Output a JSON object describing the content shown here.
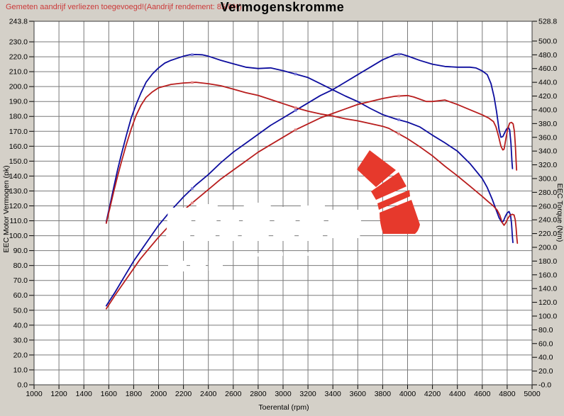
{
  "header": {
    "warning": "Gemeten aandrijf verliezen toegevoegd!(Aandrijf rendement: 85.0%)",
    "title": "Vermogenskromme"
  },
  "colors": {
    "background": "#d4d0c8",
    "plot_bg": "#ffffff",
    "grid": "#7a7a7a",
    "border": "#3a3a3a",
    "blue_curve": "#0d0d9e",
    "red_curve": "#b81d1d",
    "blue_marker": "#7878d8",
    "red_marker": "#e28585",
    "warning_text": "#cc3a3a",
    "logo_red": "#e6392c",
    "watermark_white": "#ffffff"
  },
  "chart_data": {
    "type": "line",
    "title": "Vermogenskromme",
    "xlabel": "Toerental (rpm)",
    "ylabel_left": "EEC Motor Vermogen (pk)",
    "ylabel_right": "EEC Torque (Nm)",
    "x_range": [
      1000,
      5000
    ],
    "y_left_range": [
      0,
      243.8
    ],
    "y_right_range": [
      0,
      528.8
    ],
    "grid": true,
    "x_ticks": [
      1000,
      1200,
      1400,
      1600,
      1800,
      2000,
      2200,
      2400,
      2600,
      2800,
      3000,
      3200,
      3400,
      3600,
      3800,
      4000,
      4200,
      4400,
      4600,
      4800,
      5000
    ],
    "y_left_ticks": [
      "243.8",
      "230.0",
      "220.0",
      "210.0",
      "200.0",
      "190.0",
      "180.0",
      "170.0",
      "160.0",
      "150.0",
      "140.0",
      "130.0",
      "120.0",
      "110.0",
      "100.0",
      "90.0",
      "80.0",
      "70.0",
      "60.0",
      "50.0",
      "40.0",
      "30.0",
      "20.0",
      "10.0",
      "0.0"
    ],
    "y_right_ticks": [
      "528.8",
      "500.0",
      "480.0",
      "460.0",
      "440.0",
      "420.0",
      "400.0",
      "380.0",
      "360.0",
      "340.0",
      "320.0",
      "300.0",
      "280.0",
      "260.0",
      "240.0",
      "220.0",
      "200.0",
      "180.0",
      "160.0",
      "140.0",
      "120.0",
      "100.0",
      "80.0",
      "60.0",
      "40.0",
      "20.0",
      "-0.0"
    ],
    "marker_rpms": [
      2270,
      3100,
      3930
    ],
    "series": [
      {
        "name": "power-blue",
        "axis": "left",
        "color": "#0d0d9e",
        "marker_color": "#7878d8",
        "points": [
          [
            1580,
            53
          ],
          [
            1650,
            62
          ],
          [
            1700,
            69
          ],
          [
            1750,
            76
          ],
          [
            1800,
            83
          ],
          [
            1850,
            89
          ],
          [
            1900,
            95
          ],
          [
            1950,
            101
          ],
          [
            2000,
            107
          ],
          [
            2100,
            117
          ],
          [
            2200,
            126
          ],
          [
            2300,
            134
          ],
          [
            2400,
            141
          ],
          [
            2500,
            149
          ],
          [
            2600,
            156
          ],
          [
            2700,
            162
          ],
          [
            2800,
            168
          ],
          [
            2900,
            174
          ],
          [
            3000,
            179
          ],
          [
            3100,
            184
          ],
          [
            3200,
            189
          ],
          [
            3300,
            194
          ],
          [
            3400,
            198
          ],
          [
            3500,
            203
          ],
          [
            3600,
            208
          ],
          [
            3700,
            213
          ],
          [
            3800,
            218
          ],
          [
            3900,
            221.5
          ],
          [
            3950,
            221.8
          ],
          [
            4000,
            220.5
          ],
          [
            4100,
            217.5
          ],
          [
            4200,
            215
          ],
          [
            4300,
            213.5
          ],
          [
            4400,
            213
          ],
          [
            4500,
            213
          ],
          [
            4550,
            212.5
          ],
          [
            4600,
            210.5
          ],
          [
            4640,
            208
          ],
          [
            4670,
            202
          ],
          [
            4695,
            193
          ],
          [
            4715,
            183
          ],
          [
            4735,
            171
          ],
          [
            4750,
            166
          ],
          [
            4765,
            166.5
          ],
          [
            4780,
            169
          ],
          [
            4795,
            171.5
          ],
          [
            4810,
            172.5
          ],
          [
            4820,
            171
          ],
          [
            4830,
            162
          ],
          [
            4838,
            150
          ],
          [
            4843,
            145
          ]
        ]
      },
      {
        "name": "torque-blue",
        "axis": "right",
        "color": "#0d0d9e",
        "marker_color": "#7878d8",
        "points": [
          [
            1580,
            237
          ],
          [
            1610,
            262
          ],
          [
            1640,
            287
          ],
          [
            1670,
            312
          ],
          [
            1700,
            334
          ],
          [
            1740,
            362
          ],
          [
            1780,
            388
          ],
          [
            1820,
            408
          ],
          [
            1860,
            425
          ],
          [
            1900,
            440
          ],
          [
            1950,
            452
          ],
          [
            2000,
            461
          ],
          [
            2050,
            468
          ],
          [
            2100,
            472
          ],
          [
            2150,
            475
          ],
          [
            2200,
            478
          ],
          [
            2250,
            480
          ],
          [
            2300,
            480.5
          ],
          [
            2350,
            480
          ],
          [
            2400,
            478
          ],
          [
            2450,
            475
          ],
          [
            2500,
            472
          ],
          [
            2600,
            467
          ],
          [
            2700,
            462
          ],
          [
            2800,
            460
          ],
          [
            2900,
            461
          ],
          [
            3000,
            457
          ],
          [
            3100,
            452
          ],
          [
            3200,
            447
          ],
          [
            3300,
            438
          ],
          [
            3400,
            429
          ],
          [
            3500,
            420
          ],
          [
            3600,
            412
          ],
          [
            3700,
            402
          ],
          [
            3800,
            393
          ],
          [
            3900,
            387
          ],
          [
            4000,
            382
          ],
          [
            4100,
            375
          ],
          [
            4200,
            363
          ],
          [
            4300,
            352
          ],
          [
            4400,
            340
          ],
          [
            4500,
            322
          ],
          [
            4600,
            300
          ],
          [
            4640,
            287
          ],
          [
            4680,
            270
          ],
          [
            4710,
            255
          ],
          [
            4735,
            243
          ],
          [
            4755,
            237
          ],
          [
            4770,
            238
          ],
          [
            4785,
            245
          ],
          [
            4800,
            250
          ],
          [
            4815,
            252
          ],
          [
            4827,
            247
          ],
          [
            4835,
            235
          ],
          [
            4842,
            215
          ],
          [
            4846,
            207
          ]
        ]
      },
      {
        "name": "power-red",
        "axis": "left",
        "color": "#b81d1d",
        "marker_color": "#e28585",
        "points": [
          [
            1580,
            51
          ],
          [
            1650,
            60
          ],
          [
            1700,
            66
          ],
          [
            1750,
            72
          ],
          [
            1800,
            78
          ],
          [
            1850,
            84
          ],
          [
            1900,
            89
          ],
          [
            1950,
            94
          ],
          [
            2000,
            99
          ],
          [
            2100,
            108
          ],
          [
            2200,
            117
          ],
          [
            2300,
            124
          ],
          [
            2400,
            131
          ],
          [
            2500,
            138
          ],
          [
            2600,
            144
          ],
          [
            2700,
            150
          ],
          [
            2800,
            156
          ],
          [
            2900,
            161
          ],
          [
            3000,
            166
          ],
          [
            3100,
            171
          ],
          [
            3200,
            175
          ],
          [
            3300,
            179
          ],
          [
            3400,
            182
          ],
          [
            3500,
            185
          ],
          [
            3600,
            188
          ],
          [
            3700,
            190
          ],
          [
            3800,
            192
          ],
          [
            3900,
            193.5
          ],
          [
            4000,
            194
          ],
          [
            4050,
            193
          ],
          [
            4100,
            191.5
          ],
          [
            4150,
            190
          ],
          [
            4200,
            190
          ],
          [
            4250,
            190.5
          ],
          [
            4300,
            191
          ],
          [
            4350,
            189.5
          ],
          [
            4400,
            188
          ],
          [
            4500,
            184.5
          ],
          [
            4600,
            181
          ],
          [
            4650,
            179
          ],
          [
            4690,
            176.5
          ],
          [
            4710,
            173
          ],
          [
            4730,
            167
          ],
          [
            4750,
            160
          ],
          [
            4765,
            157.5
          ],
          [
            4775,
            158
          ],
          [
            4790,
            165
          ],
          [
            4805,
            172
          ],
          [
            4820,
            175.5
          ],
          [
            4835,
            176
          ],
          [
            4848,
            175
          ],
          [
            4858,
            170
          ],
          [
            4866,
            160
          ],
          [
            4872,
            150
          ],
          [
            4876,
            144
          ]
        ]
      },
      {
        "name": "torque-red",
        "axis": "right",
        "color": "#b81d1d",
        "marker_color": "#e28585",
        "points": [
          [
            1580,
            235
          ],
          [
            1610,
            258
          ],
          [
            1640,
            281
          ],
          [
            1670,
            303
          ],
          [
            1700,
            323
          ],
          [
            1740,
            349
          ],
          [
            1780,
            372
          ],
          [
            1820,
            392
          ],
          [
            1860,
            407
          ],
          [
            1900,
            418
          ],
          [
            1950,
            426
          ],
          [
            2000,
            432
          ],
          [
            2100,
            437
          ],
          [
            2200,
            439
          ],
          [
            2300,
            440
          ],
          [
            2400,
            438
          ],
          [
            2500,
            435
          ],
          [
            2600,
            430
          ],
          [
            2700,
            425
          ],
          [
            2800,
            421
          ],
          [
            2900,
            415
          ],
          [
            3000,
            409
          ],
          [
            3100,
            403
          ],
          [
            3200,
            398
          ],
          [
            3300,
            394
          ],
          [
            3400,
            391
          ],
          [
            3500,
            387
          ],
          [
            3600,
            384
          ],
          [
            3700,
            380
          ],
          [
            3800,
            376
          ],
          [
            3850,
            373
          ],
          [
            3900,
            368
          ],
          [
            4000,
            358
          ],
          [
            4100,
            346
          ],
          [
            4200,
            333
          ],
          [
            4300,
            318
          ],
          [
            4400,
            304
          ],
          [
            4500,
            289
          ],
          [
            4600,
            274
          ],
          [
            4650,
            266
          ],
          [
            4690,
            260
          ],
          [
            4720,
            254
          ],
          [
            4740,
            247
          ],
          [
            4760,
            236
          ],
          [
            4775,
            232
          ],
          [
            4790,
            236
          ],
          [
            4805,
            242
          ],
          [
            4820,
            246
          ],
          [
            4840,
            248
          ],
          [
            4855,
            247
          ],
          [
            4865,
            240
          ],
          [
            4872,
            228
          ],
          [
            4878,
            213
          ],
          [
            4882,
            206
          ]
        ]
      }
    ]
  }
}
